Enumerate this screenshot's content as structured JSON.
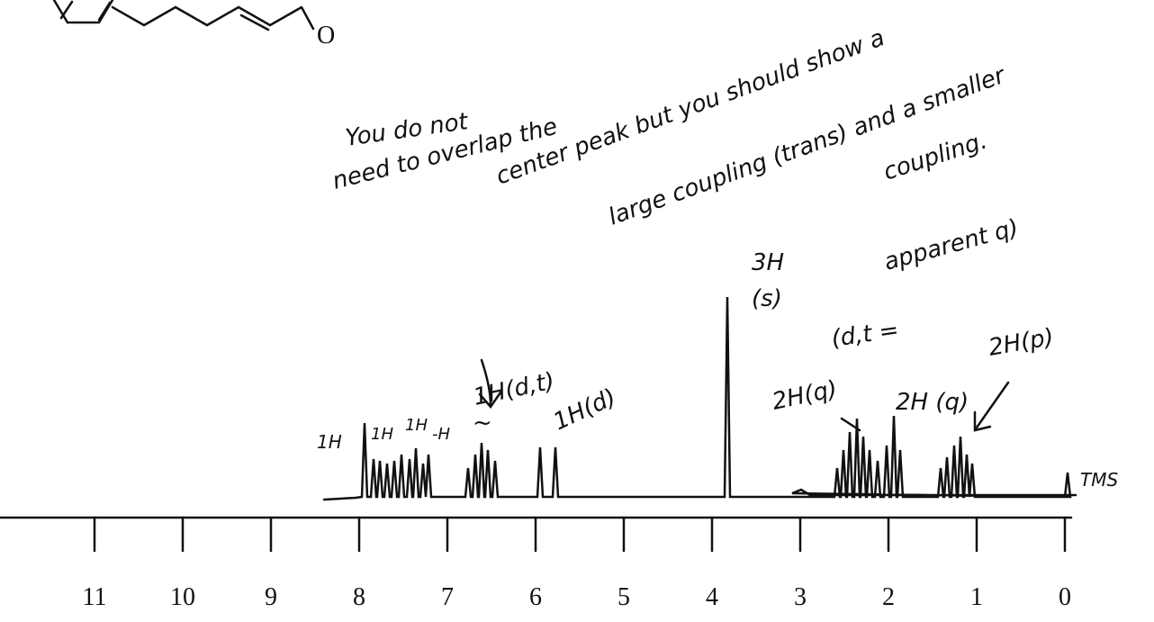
{
  "structure": {
    "atom": "O"
  },
  "notes": {
    "lines": [
      "You do not",
      "need to overlap the",
      "center peak but you should show a",
      "large coupling (trans) and a smaller",
      "coupling."
    ]
  },
  "peaks": {
    "methyl": "3H",
    "methyl_mult": "(s)",
    "dt": "(d,t =",
    "dt_apparent": "apparent q)",
    "p": "2H(p)",
    "q1": "2H(q)",
    "q2": "2H (q)",
    "h1": "1H",
    "h2": "1H",
    "h3": "1H",
    "h4": "-H",
    "h5": "~",
    "dtH": "1H(d,t)",
    "dH": "1H(d)",
    "tms": "TMS"
  },
  "axis": {
    "labels": [
      "11",
      "10",
      "9",
      "8",
      "7",
      "6",
      "5",
      "4",
      "3",
      "2",
      "1",
      "0"
    ]
  }
}
